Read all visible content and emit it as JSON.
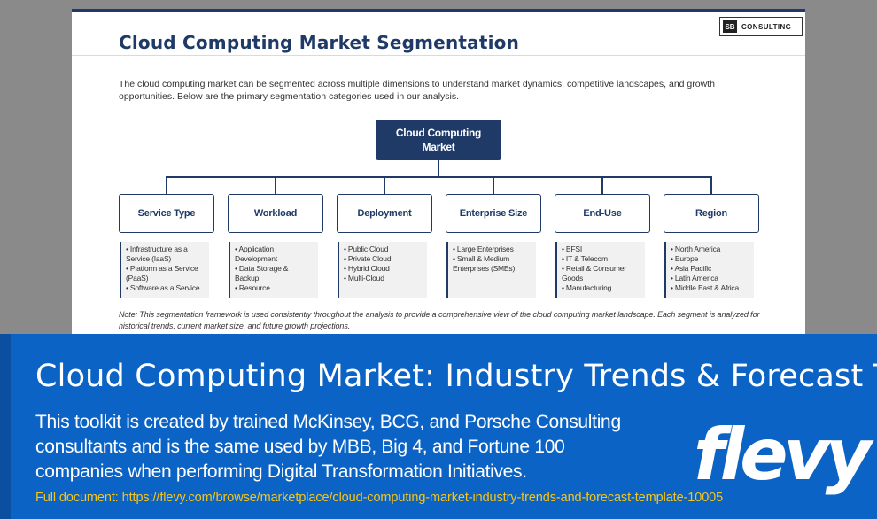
{
  "slide": {
    "title": "Cloud Computing Market Segmentation",
    "logo_mark": "SB",
    "logo_text": "CONSULTING",
    "intro": "The cloud computing market can be segmented across multiple dimensions to understand market dynamics, competitive landscapes, and growth opportunities. Below are the primary segmentation categories used in our analysis.",
    "root_line1": "Cloud Computing",
    "root_line2": "Market",
    "segments": [
      {
        "title": "Service Type",
        "items": [
          "• Infrastructure as a",
          "Service (IaaS)",
          "• Platform as a Service",
          "(PaaS)",
          "• Software as a Service"
        ]
      },
      {
        "title": "Workload",
        "items": [
          "• Application",
          "Development",
          "• Data Storage &",
          "Backup",
          "• Resource"
        ]
      },
      {
        "title": "Deployment",
        "items": [
          "• Public Cloud",
          "• Private Cloud",
          "• Hybrid Cloud",
          "• Multi-Cloud"
        ]
      },
      {
        "title": "Enterprise Size",
        "items": [
          "• Large Enterprises",
          "• Small & Medium",
          "Enterprises (SMEs)"
        ]
      },
      {
        "title": "End-Use",
        "items": [
          "• BFSI",
          "• IT & Telecom",
          "• Retail & Consumer",
          "Goods",
          "• Manufacturing"
        ]
      },
      {
        "title": "Region",
        "items": [
          "• North America",
          "• Europe",
          "• Asia Pacific",
          "• Latin America",
          "• Middle East & Africa"
        ]
      }
    ],
    "note": "Note: This segmentation framework is used consistently throughout the analysis to provide a comprehensive view of the cloud computing market landscape. Each segment is analyzed for historical trends, current market size, and future growth projections."
  },
  "banner": {
    "title": "Cloud Computing Market: Industry Trends & Forecast Template",
    "description": "This toolkit is created by trained McKinsey, BCG, and Porsche Consulting consultants and is the same used by MBB, Big 4, and Fortune 100 companies when performing Digital Transformation Initiatives.",
    "brand": "flevy",
    "full_document": "Full document: https://flevy.com/browse/marketplace/cloud-computing-market-industry-trends-and-forecast-template-10005"
  },
  "colors": {
    "navy": "#1f3a67",
    "banner_blue": "#0b63c6",
    "link_yellow": "#f5c518"
  }
}
